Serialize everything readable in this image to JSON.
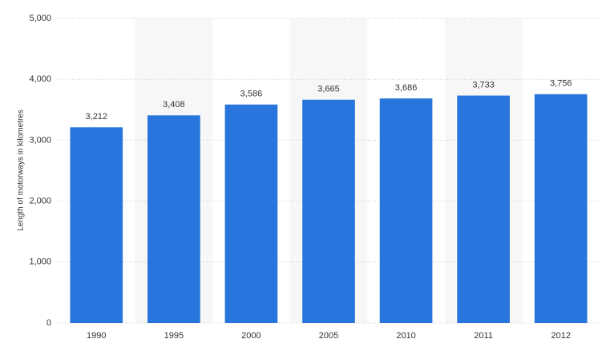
{
  "chart_data": {
    "type": "bar",
    "y_label": "Length of motorways in kilometres",
    "categories": [
      "1990",
      "1995",
      "2000",
      "2005",
      "2010",
      "2011",
      "2012"
    ],
    "values": [
      3212,
      3408,
      3586,
      3665,
      3686,
      3733,
      3756
    ],
    "value_labels": [
      "3,212",
      "3,408",
      "3,586",
      "3,665",
      "3,686",
      "3,733",
      "3,756"
    ],
    "color": "#2876dd",
    "ylim": [
      0,
      5000
    ],
    "yticks": [
      0,
      {
        "value": 1000,
        "label": "1,000"
      },
      {
        "value": 2000,
        "label": "2,000"
      },
      {
        "value": 3000,
        "label": "3,000"
      },
      {
        "value": 4000,
        "label": "4,000"
      },
      {
        "value": 5000,
        "label": "5,000"
      }
    ],
    "grid": true
  }
}
